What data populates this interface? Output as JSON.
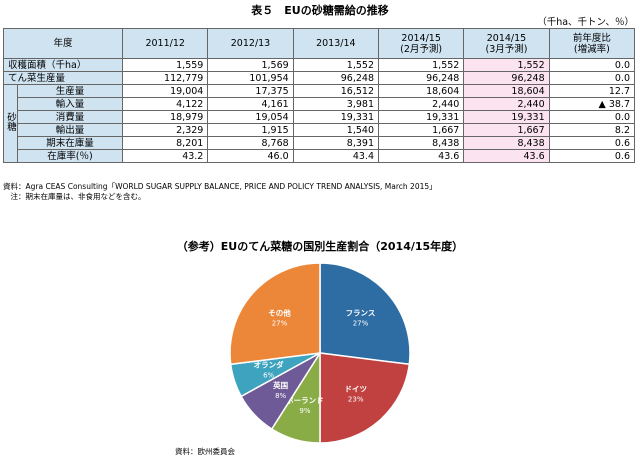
{
  "table": {
    "title": "表５　EUの砂糖需給の推移",
    "unit": "（千ha、千トン、％）",
    "header_label": "年度",
    "columns": [
      "2011/12",
      "2012/13",
      "2013/14",
      "2014/15\n(2月予測)",
      "2014/15\n(3月予測)",
      "前年度比\n(増減率)"
    ],
    "group_label": "砂糖",
    "rows": [
      {
        "label": "収穫面積（千ha）",
        "values": [
          "1,559",
          "1,569",
          "1,552",
          "1,552",
          "1,552",
          "0.0"
        ]
      },
      {
        "label": "てん菜生産量",
        "values": [
          "112,779",
          "101,954",
          "96,248",
          "96,248",
          "96,248",
          "0.0"
        ]
      },
      {
        "label": "生産量",
        "values": [
          "19,004",
          "17,375",
          "16,512",
          "18,604",
          "18,604",
          "12.7"
        ]
      },
      {
        "label": "輸入量",
        "values": [
          "4,122",
          "4,161",
          "3,981",
          "2,440",
          "2,440",
          "▲ 38.7"
        ]
      },
      {
        "label": "消費量",
        "values": [
          "18,979",
          "19,054",
          "19,331",
          "19,331",
          "19,331",
          "0.0"
        ]
      },
      {
        "label": "輸出量",
        "values": [
          "2,329",
          "1,915",
          "1,540",
          "1,667",
          "1,667",
          "8.2"
        ]
      },
      {
        "label": "期末在庫量",
        "values": [
          "8,201",
          "8,768",
          "8,391",
          "8,438",
          "8,438",
          "0.6"
        ]
      },
      {
        "label": "在庫率(％)",
        "values": [
          "43.2",
          "46.0",
          "43.4",
          "43.6",
          "43.6",
          "0.6"
        ]
      }
    ],
    "source_note": "資料：Agra CEAS Consulting「WORLD SUGAR SUPPLY BALANCE, PRICE AND POLICY TREND ANALYSIS, March 2015」",
    "note": "　注：期末在庫量は、非食用などを含む。"
  },
  "chart_data": {
    "type": "pie",
    "title": "（参考）EUのてん菜糖の国別生産割合（2014/15年度）",
    "slices": [
      {
        "name": "フランス",
        "value": 27,
        "label": "27%",
        "color": "#2e6da4"
      },
      {
        "name": "ドイツ",
        "value": 23,
        "label": "23%",
        "color": "#c0413f"
      },
      {
        "name": "ポーランド",
        "value": 9,
        "label": "9%",
        "color": "#8aac46"
      },
      {
        "name": "英国",
        "value": 8,
        "label": "8%",
        "color": "#6e5a96"
      },
      {
        "name": "オランダ",
        "value": 6,
        "label": "6%",
        "color": "#3ea3bf"
      },
      {
        "name": "その他",
        "value": 27,
        "label": "27%",
        "color": "#ec8739"
      }
    ],
    "source": "資料：欧州委員会"
  }
}
